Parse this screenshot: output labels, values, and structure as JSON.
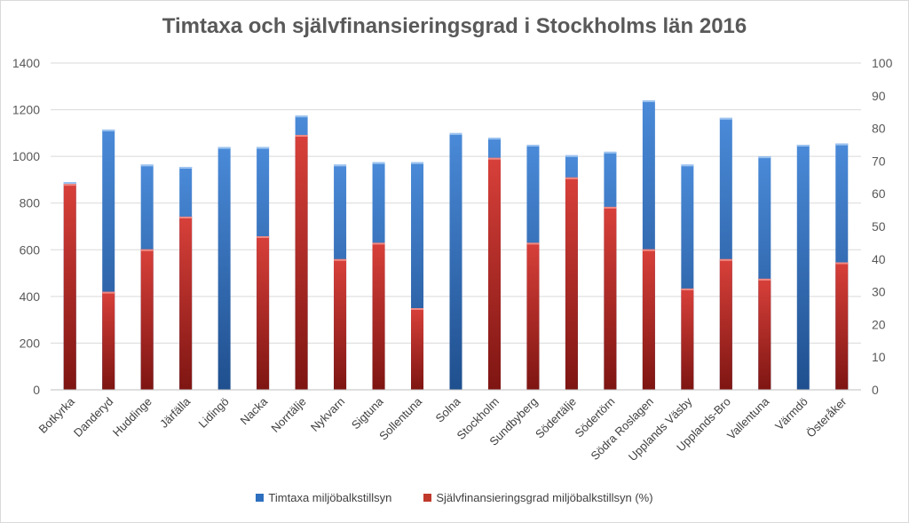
{
  "chart_data": {
    "type": "bar",
    "title": "Timtaxa och självfinansieringsgrad i Stockholms län 2016",
    "categories": [
      "Botkyrka",
      "Danderyd",
      "Huddinge",
      "Järfälla",
      "Lidingö",
      "Nacka",
      "Norrtälje",
      "Nykvarn",
      "Sigtuna",
      "Sollentuna",
      "Solna",
      "Stockholm",
      "Sundbyberg",
      "Södertälje",
      "Södertörn",
      "Södra Roslagen",
      "Upplands Väsby",
      "Upplands-Bro",
      "Vallentuna",
      "Värmdö",
      "Österåker"
    ],
    "series": [
      {
        "name": "Timtaxa miljöbalkstillsyn",
        "axis": "left",
        "color": "#3a78c8",
        "values": [
          890,
          1115,
          965,
          955,
          1040,
          1040,
          1175,
          965,
          975,
          975,
          1100,
          1080,
          1050,
          1005,
          1020,
          1240,
          965,
          1165,
          1000,
          1050,
          1055
        ]
      },
      {
        "name": "Självfinansieringsgrad miljöbalkstillsyn (%)",
        "axis": "right",
        "color": "#c0392b",
        "values": [
          63,
          30,
          43,
          53,
          null,
          47,
          78,
          40,
          45,
          25,
          null,
          71,
          45,
          65,
          56,
          43,
          31,
          40,
          34,
          null,
          39
        ]
      }
    ],
    "y_left": {
      "min": 0,
      "max": 1400,
      "ticks": [
        "0",
        "200",
        "400",
        "600",
        "800",
        "1000",
        "1200",
        "1400"
      ]
    },
    "y_right": {
      "min": 0,
      "max": 100,
      "ticks": [
        "0",
        "10",
        "20",
        "30",
        "40",
        "50",
        "60",
        "70",
        "80",
        "90",
        "100"
      ]
    },
    "legend": "bottom",
    "grid": true
  }
}
